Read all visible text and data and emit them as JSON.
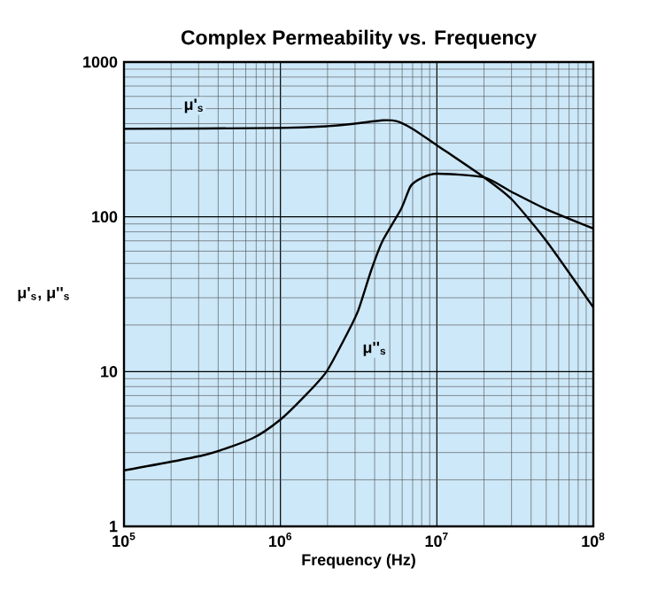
{
  "chart_data": {
    "type": "line",
    "title": "Complex Permeability vs. Frequency",
    "xlabel": "Frequency (Hz)",
    "ylabel": "μ'$_{s}$, μ''$_{s}$",
    "log": "xy",
    "grid": true,
    "marker": "none",
    "line_style": "solid",
    "xlim": [
      100000,
      100000000
    ],
    "ylim": [
      1,
      1000
    ],
    "xticks": [
      {
        "value": 100000,
        "label": "10$^{5}$"
      },
      {
        "value": 1000000,
        "label": "10$^{6}$"
      },
      {
        "value": 10000000,
        "label": "10$^{7}$"
      },
      {
        "value": 100000000,
        "label": "10$^{8}$"
      }
    ],
    "yticks": [
      1,
      10,
      100,
      1000
    ],
    "series": [
      {
        "color": "#000000",
        "x": [
          100000,
          1000000,
          2000000,
          3000000,
          4500000,
          5500000,
          7000000,
          10000000,
          20000000,
          30000000,
          50000000,
          100000000
        ],
        "values": [
          370,
          375,
          385,
          400,
          420,
          415,
          370,
          290,
          180,
          130,
          70,
          26
        ]
      },
      {
        "color": "#000000",
        "x": [
          100000,
          330000,
          660000,
          1000000,
          1440000,
          1970000,
          2700000,
          3150000,
          3800000,
          4500000,
          5900000,
          6800000,
          8000000,
          10000000,
          20000000,
          30000000,
          50000000,
          100000000
        ],
        "values": [
          2.3,
          2.9,
          3.7,
          4.9,
          7,
          10,
          18,
          25,
          45,
          70,
          112,
          158,
          178,
          190,
          180,
          145,
          112,
          84
        ]
      }
    ],
    "annotations": [
      {
        "text": "μ'$_{s}$",
        "x": 280000,
        "y": 520
      },
      {
        "text": "μ''$_{s}$",
        "x": 4000000,
        "y": 14
      }
    ]
  }
}
